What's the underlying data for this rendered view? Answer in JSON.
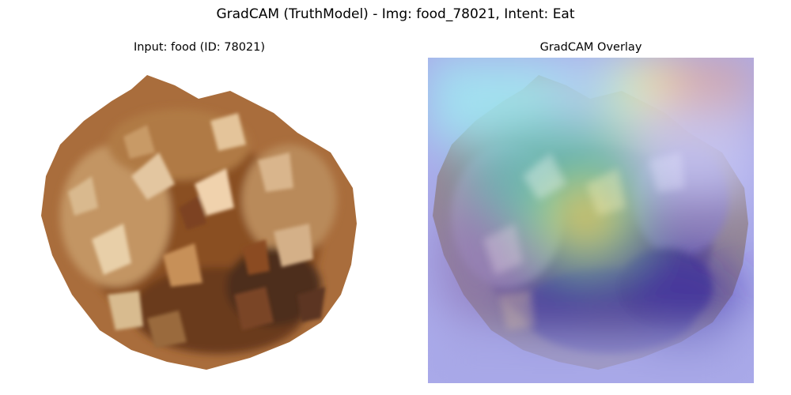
{
  "figure": {
    "suptitle": "GradCAM (TruthModel) - Img: food_78021, Intent: Eat"
  },
  "panels": [
    {
      "title": "Input: food (ID: 78021)",
      "image": "pineapple-photo"
    },
    {
      "title": "GradCAM Overlay",
      "image": "pineapple-gradcam-heatmap-overlay"
    }
  ],
  "colors": {
    "background": "#ffffff",
    "text": "#000000",
    "heat_low": "#3b3bd6",
    "heat_mid": "#3fd0a0",
    "heat_high": "#e23a2a"
  }
}
